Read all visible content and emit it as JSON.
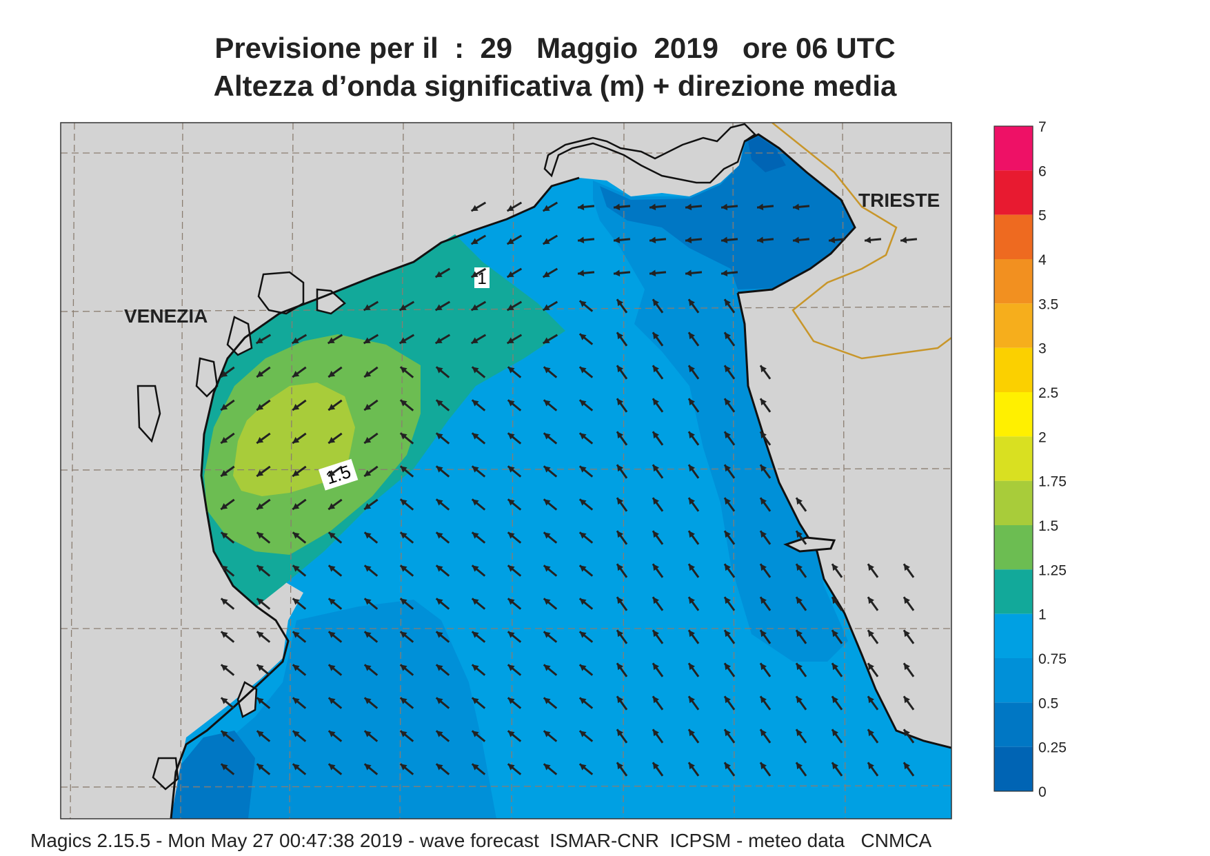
{
  "title": {
    "line1": "Previsione per il  :  29   Maggio  2019   ore 06 UTC",
    "line2": "Altezza d’onda significativa (m) + direzione media"
  },
  "footer": "Magics 2.15.5 - Mon May 27 00:47:38 2019 - wave forecast  ISMAR-CNR  ICPSM - meteo data   CNMCA",
  "map": {
    "places": [
      {
        "name": "VENEZIA"
      },
      {
        "name": "TRIESTE"
      }
    ],
    "contour_labels": [
      "1",
      "1.5"
    ],
    "land_color": "#d3d3d3",
    "coast_color": "#111111",
    "border_color": "#c8962a",
    "grid": "dashed"
  },
  "legend": {
    "items": [
      {
        "label": "7",
        "color": "#ee1166"
      },
      {
        "label": "6",
        "color": "#e81a30"
      },
      {
        "label": "5",
        "color": "#ee6a20"
      },
      {
        "label": "4",
        "color": "#f29020"
      },
      {
        "label": "3.5",
        "color": "#f6ae1c"
      },
      {
        "label": "3",
        "color": "#fbd000"
      },
      {
        "label": "2.5",
        "color": "#fff000"
      },
      {
        "label": "2",
        "color": "#d9e021"
      },
      {
        "label": "1.75",
        "color": "#a8cc3a"
      },
      {
        "label": "1.5",
        "color": "#6cbd52"
      },
      {
        "label": "1.25",
        "color": "#12a99a"
      },
      {
        "label": "1",
        "color": "#00a0e3"
      },
      {
        "label": "0.75",
        "color": "#0090d8"
      },
      {
        "label": "0.5",
        "color": "#0077c4"
      },
      {
        "label": "0.25",
        "color": "#0064b4"
      },
      {
        "label": "0",
        "color": ""
      }
    ]
  }
}
